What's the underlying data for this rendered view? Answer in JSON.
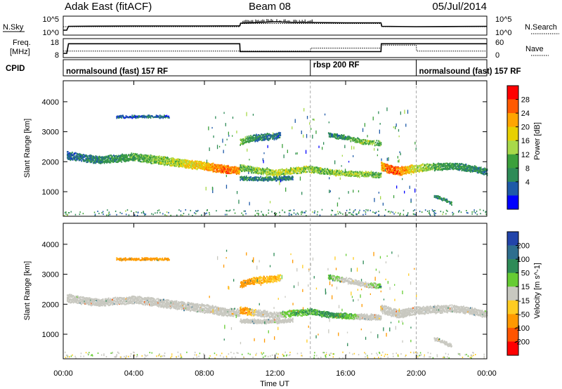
{
  "header": {
    "title": "Adak East (fitACF)",
    "beam": "Beam 08",
    "date": "05/Jul/2014"
  },
  "strip_labels": {
    "nsky": "N.Sky",
    "nsearch": "N.Search",
    "freq_line1": "Freq.",
    "freq_line2": "[MHz]",
    "nave": "Nave",
    "cpid": "CPID"
  },
  "strip_ticks": {
    "noise_left": [
      "10^5",
      "10^0"
    ],
    "noise_right": [
      "10^5",
      "10^0"
    ],
    "freq_left": [
      "18",
      "8"
    ],
    "freq_right": [
      "60",
      "0"
    ]
  },
  "cpid_segments": [
    {
      "label": "normalsound (fast) 157 RF",
      "start_hour": 0,
      "end_hour": 14
    },
    {
      "label": "rbsp 200 RF",
      "start_hour": 14,
      "end_hour": 20
    },
    {
      "label": "normalsound (fast) 157 RF",
      "start_hour": 20,
      "end_hour": 24
    }
  ],
  "axes": {
    "xlabel": "Time UT",
    "x_ticks": [
      "00:00",
      "04:00",
      "08:00",
      "12:00",
      "16:00",
      "20:00",
      "00:00"
    ],
    "ylabel": "Slant Range [km]",
    "y_ticks": [
      "1000",
      "2000",
      "3000",
      "4000"
    ]
  },
  "colorbars": {
    "power_label": "Power [dB]",
    "power_ticks": [
      "28",
      "24",
      "20",
      "16",
      "12",
      "8",
      "4"
    ],
    "power_colors": [
      "#ff0000",
      "#ff5a00",
      "#ffa500",
      "#e8d000",
      "#a8d94a",
      "#3ca03c",
      "#2e8b57",
      "#1e5aa8",
      "#0000ff"
    ],
    "velocity_label": "Velocity [m s^-1]",
    "velocity_ticks": [
      "200",
      "100",
      "50",
      "15",
      "-15",
      "-50",
      "-100",
      "-200"
    ],
    "velocity_colors": [
      "#2244aa",
      "#2e6e8e",
      "#2e8b57",
      "#66cc33",
      "#c8c8c0",
      "#ffcc22",
      "#ff9900",
      "#ff5500",
      "#ff0000"
    ]
  },
  "chart_data": [
    {
      "type": "line",
      "title": "N.Sky / N.Search",
      "x_range_hours": [
        0,
        24
      ],
      "ylim_log10": [
        0,
        5
      ],
      "series": [
        {
          "name": "N.Sky",
          "x": [
            0,
            0.2,
            0.3,
            4,
            8,
            10,
            10.05,
            12,
            13,
            14,
            16,
            18,
            18.05,
            20,
            24
          ],
          "y_log10": [
            1.2,
            1.2,
            2.3,
            2.4,
            2.4,
            2.45,
            3.2,
            3.6,
            3.4,
            3.4,
            3.3,
            3.3,
            2.3,
            2.2,
            2.3
          ]
        },
        {
          "name": "N.Search",
          "x": [
            0,
            10,
            10.05,
            18,
            18.05,
            24
          ],
          "y_log10": [
            2.2,
            2.2,
            3.1,
            3.1,
            2.2,
            2.2
          ]
        }
      ]
    },
    {
      "type": "line",
      "title": "Freq. / Nave",
      "x_range_hours": [
        0,
        24
      ],
      "ylim_freq": [
        8,
        18
      ],
      "ylim_nave": [
        0,
        60
      ],
      "series": [
        {
          "name": "Freq.",
          "x": [
            0,
            0.2,
            0.3,
            10,
            10.02,
            14,
            18,
            18.02,
            24
          ],
          "y": [
            10,
            10,
            15.5,
            15.5,
            11,
            11,
            11,
            15.5,
            15.5
          ]
        },
        {
          "name": "Nave",
          "x": [
            0,
            10,
            10.02,
            14,
            14.02,
            18,
            18.02,
            20,
            20.02,
            24
          ],
          "y": [
            20,
            20,
            20,
            20,
            30,
            30,
            40,
            40,
            20,
            20
          ]
        }
      ]
    },
    {
      "type": "heatmap",
      "title": "Power",
      "xlabel": "Time UT",
      "ylabel": "Slant Range [km]",
      "x_range_hours": [
        0,
        24
      ],
      "ylim_km": [
        180,
        4700
      ],
      "color_scale": "Power [dB]",
      "bands": [
        {
          "t": [
            0.2,
            2,
            4,
            6,
            8,
            9,
            10
          ],
          "range_km": [
            2200,
            2050,
            2150,
            2000,
            1850,
            1750,
            1700
          ],
          "width_km": [
            250,
            220,
            240,
            260,
            260,
            250,
            230
          ],
          "power_db": [
            6,
            8,
            11,
            15,
            20,
            24,
            22
          ]
        },
        {
          "t": [
            10,
            11,
            12,
            13,
            14,
            15,
            16,
            17,
            18
          ],
          "range_km": [
            1800,
            1700,
            1620,
            1700,
            1750,
            1650,
            1600,
            1580,
            1550
          ],
          "width_km": [
            200,
            200,
            200,
            200,
            200,
            180,
            180,
            180,
            180
          ],
          "power_db": [
            12,
            14,
            16,
            16,
            14,
            14,
            15,
            14,
            12
          ]
        },
        {
          "t": [
            10,
            11,
            12,
            13
          ],
          "range_km": [
            1450,
            1420,
            1430,
            1460
          ],
          "width_km": [
            120,
            120,
            120,
            120
          ],
          "power_db": [
            8,
            8,
            7,
            7
          ]
        },
        {
          "t": [
            10,
            10.5,
            11,
            12,
            12.3
          ],
          "range_km": [
            2650,
            2750,
            2800,
            2850,
            2900
          ],
          "width_km": [
            200,
            200,
            200,
            200,
            180
          ],
          "power_db": [
            14,
            10,
            8,
            7,
            6
          ]
        },
        {
          "t": [
            15,
            16,
            17,
            18
          ],
          "range_km": [
            2900,
            2800,
            2650,
            2600
          ],
          "width_km": [
            150,
            150,
            150,
            150
          ],
          "power_db": [
            8,
            10,
            14,
            12
          ]
        },
        {
          "t": [
            18,
            18.5,
            19,
            20,
            21,
            22,
            23,
            24
          ],
          "range_km": [
            1850,
            1750,
            1680,
            1780,
            1820,
            1850,
            1780,
            1650
          ],
          "width_km": [
            280,
            260,
            260,
            240,
            230,
            220,
            220,
            200
          ],
          "power_db": [
            20,
            25,
            24,
            16,
            12,
            10,
            9,
            8
          ]
        },
        {
          "t": [
            3,
            4,
            5,
            6
          ],
          "range_km": [
            3500,
            3500,
            3500,
            3500
          ],
          "width_km": [
            60,
            60,
            60,
            60
          ],
          "power_db": [
            6,
            6,
            6,
            6
          ]
        },
        {
          "t": [
            21,
            21.5,
            22
          ],
          "range_km": [
            850,
            750,
            600
          ],
          "width_km": [
            100,
            100,
            100
          ],
          "power_db": [
            8,
            10,
            8
          ]
        }
      ]
    },
    {
      "type": "heatmap",
      "title": "Velocity",
      "xlabel": "Time UT",
      "ylabel": "Slant Range [km]",
      "x_range_hours": [
        0,
        24
      ],
      "ylim_km": [
        180,
        4700
      ],
      "color_scale": "Velocity [m s^-1]",
      "bands": [
        {
          "t": [
            0.2,
            2,
            4,
            6,
            8,
            9,
            10
          ],
          "range_km": [
            2200,
            2050,
            2150,
            2000,
            1850,
            1750,
            1700
          ],
          "width_km": [
            250,
            220,
            240,
            260,
            260,
            250,
            230
          ],
          "velocity": [
            0,
            0,
            0,
            0,
            0,
            0,
            0
          ]
        },
        {
          "t": [
            10,
            11,
            12,
            13,
            14,
            15,
            16,
            17,
            18
          ],
          "range_km": [
            1800,
            1700,
            1620,
            1700,
            1750,
            1650,
            1600,
            1580,
            1550
          ],
          "width_km": [
            200,
            200,
            200,
            200,
            200,
            180,
            180,
            180,
            180
          ],
          "velocity": [
            -60,
            0,
            0,
            30,
            30,
            40,
            30,
            0,
            0
          ]
        },
        {
          "t": [
            10,
            11,
            12,
            13
          ],
          "range_km": [
            1450,
            1420,
            1430,
            1460
          ],
          "width_km": [
            120,
            120,
            120,
            120
          ],
          "velocity": [
            0,
            0,
            0,
            0
          ]
        },
        {
          "t": [
            10,
            10.5,
            11,
            12,
            12.3
          ],
          "range_km": [
            2650,
            2750,
            2800,
            2850,
            2900
          ],
          "width_km": [
            200,
            200,
            200,
            200,
            180
          ],
          "velocity": [
            -60,
            -40,
            -30,
            -30,
            -20
          ]
        },
        {
          "t": [
            15,
            16,
            17,
            18
          ],
          "range_km": [
            2900,
            2800,
            2650,
            2600
          ],
          "width_km": [
            150,
            150,
            150,
            150
          ],
          "velocity": [
            30,
            0,
            0,
            30
          ]
        },
        {
          "t": [
            18,
            18.5,
            19,
            20,
            21,
            22,
            23,
            24
          ],
          "range_km": [
            1850,
            1750,
            1680,
            1780,
            1820,
            1850,
            1780,
            1650
          ],
          "width_km": [
            280,
            260,
            260,
            240,
            230,
            220,
            220,
            200
          ],
          "velocity": [
            0,
            0,
            0,
            0,
            0,
            0,
            0,
            0
          ]
        },
        {
          "t": [
            3,
            4,
            5,
            6
          ],
          "range_km": [
            3500,
            3500,
            3500,
            3500
          ],
          "width_km": [
            60,
            60,
            60,
            60
          ],
          "velocity": [
            -40,
            -40,
            -40,
            -40
          ]
        },
        {
          "t": [
            21,
            21.5,
            22
          ],
          "range_km": [
            850,
            750,
            600
          ],
          "width_km": [
            100,
            100,
            100
          ],
          "velocity": [
            0,
            0,
            0
          ]
        }
      ]
    }
  ]
}
